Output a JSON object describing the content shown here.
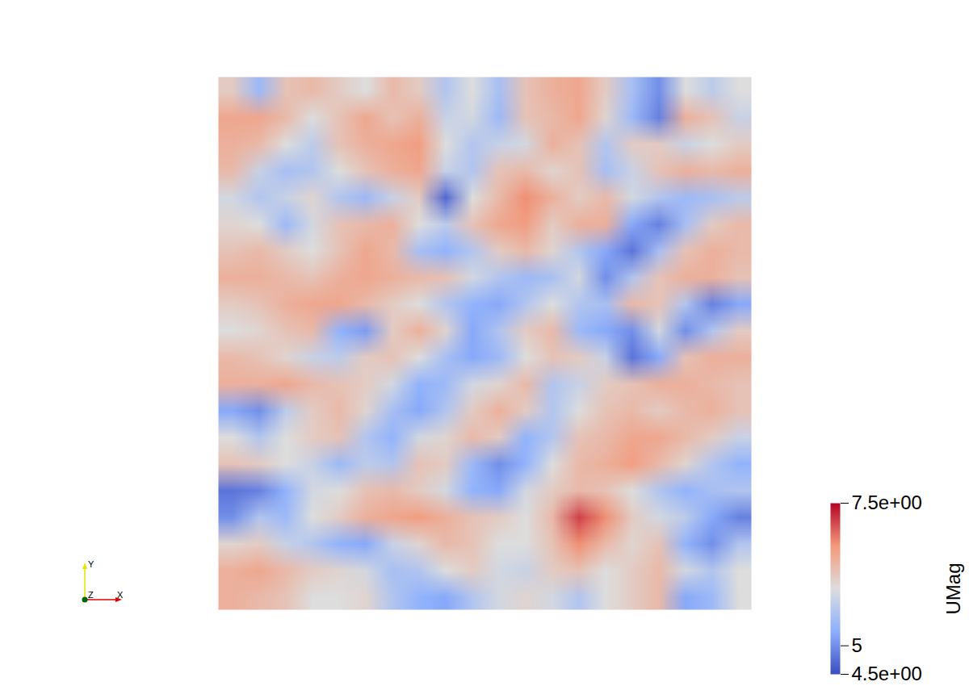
{
  "chart_data": {
    "type": "heatmap",
    "tick_labels": false,
    "colorbar": {
      "label": "UMag",
      "range": [
        4.5,
        7.5
      ],
      "ticks": [
        {
          "value": 7.5,
          "label": "7.5e+00"
        },
        5,
        {
          "value": 4.5,
          "label": "4.5e+00"
        }
      ]
    },
    "axes_triad": {
      "x": "X",
      "y": "Y",
      "z": "Z"
    },
    "cells": [
      [
        6.2,
        5.4,
        6.3,
        6.4,
        6.2,
        6.0,
        6.4,
        6.2,
        5.6,
        6.0,
        5.5,
        6.3,
        6.5,
        6.6,
        6.2,
        5.5,
        5.0,
        6.0,
        5.7,
        6.0
      ],
      [
        6.6,
        6.6,
        6.4,
        6.0,
        6.3,
        6.6,
        6.3,
        6.5,
        5.8,
        5.9,
        5.4,
        6.3,
        6.4,
        6.6,
        6.1,
        5.4,
        4.9,
        6.5,
        6.3,
        5.8
      ],
      [
        6.5,
        6.4,
        6.0,
        5.7,
        6.3,
        6.5,
        6.6,
        6.7,
        6.0,
        5.6,
        5.8,
        5.9,
        6.5,
        6.3,
        5.6,
        6.2,
        6.2,
        5.8,
        6.0,
        6.2
      ],
      [
        6.4,
        5.8,
        5.5,
        5.6,
        6.0,
        6.3,
        6.5,
        6.6,
        5.8,
        5.6,
        6.3,
        6.4,
        6.1,
        6.3,
        5.5,
        5.8,
        6.3,
        6.5,
        6.4,
        6.5
      ],
      [
        5.9,
        5.6,
        5.8,
        6.1,
        5.6,
        5.4,
        5.8,
        6.2,
        4.7,
        6.0,
        6.4,
        6.8,
        6.5,
        6.2,
        6.4,
        5.9,
        5.6,
        5.4,
        5.5,
        5.7
      ],
      [
        6.1,
        6.0,
        5.4,
        5.9,
        6.3,
        6.4,
        6.5,
        6.0,
        5.7,
        6.3,
        6.6,
        6.7,
        6.2,
        6.5,
        6.5,
        5.2,
        4.9,
        5.5,
        6.2,
        6.4
      ],
      [
        6.3,
        6.4,
        6.2,
        6.0,
        6.3,
        6.6,
        6.4,
        5.5,
        5.3,
        5.6,
        6.2,
        6.4,
        6.1,
        5.6,
        5.2,
        4.8,
        5.5,
        6.3,
        6.5,
        6.4
      ],
      [
        6.5,
        6.5,
        6.4,
        6.3,
        6.5,
        6.6,
        6.5,
        6.4,
        6.3,
        5.9,
        5.6,
        5.4,
        5.5,
        5.9,
        5.0,
        5.6,
        6.3,
        6.5,
        6.5,
        6.3
      ],
      [
        6.2,
        6.3,
        6.5,
        6.6,
        6.6,
        6.4,
        6.2,
        6.0,
        5.6,
        5.3,
        5.2,
        5.6,
        6.0,
        5.6,
        5.5,
        6.4,
        6.3,
        5.6,
        4.9,
        5.2
      ],
      [
        6.0,
        6.1,
        6.3,
        6.4,
        5.3,
        5.1,
        6.2,
        6.5,
        6.1,
        5.2,
        5.6,
        6.2,
        6.4,
        5.4,
        5.2,
        5.0,
        5.9,
        5.0,
        5.6,
        6.2
      ],
      [
        6.4,
        6.3,
        6.1,
        5.8,
        5.7,
        6.2,
        6.3,
        6.0,
        5.5,
        5.2,
        5.4,
        6.0,
        6.3,
        6.2,
        5.8,
        4.8,
        5.2,
        6.3,
        6.5,
        6.5
      ],
      [
        6.5,
        6.5,
        6.6,
        6.4,
        6.3,
        6.2,
        5.9,
        5.3,
        5.4,
        5.9,
        6.1,
        6.4,
        5.6,
        5.8,
        6.2,
        6.3,
        6.5,
        6.5,
        6.4,
        6.3
      ],
      [
        5.2,
        5.0,
        5.7,
        6.2,
        6.4,
        6.1,
        5.5,
        5.2,
        5.6,
        6.2,
        6.5,
        6.2,
        5.6,
        6.0,
        6.3,
        6.4,
        6.2,
        6.4,
        6.5,
        6.3
      ],
      [
        6.0,
        5.6,
        6.0,
        6.2,
        6.3,
        5.6,
        5.3,
        5.9,
        6.1,
        6.4,
        6.2,
        5.3,
        5.6,
        6.3,
        6.4,
        6.6,
        6.6,
        6.4,
        6.2,
        5.8
      ],
      [
        6.3,
        6.2,
        6.0,
        5.8,
        5.4,
        5.7,
        5.6,
        6.3,
        6.2,
        5.4,
        5.0,
        5.3,
        6.0,
        6.4,
        6.5,
        6.7,
        6.4,
        6.1,
        5.6,
        5.3
      ],
      [
        4.8,
        4.9,
        5.3,
        5.9,
        6.0,
        6.3,
        6.4,
        6.2,
        5.9,
        5.3,
        5.2,
        5.9,
        6.2,
        6.4,
        6.3,
        6.0,
        5.6,
        5.3,
        5.5,
        5.6
      ],
      [
        5.0,
        5.6,
        5.4,
        6.0,
        6.2,
        6.5,
        6.6,
        6.7,
        6.5,
        6.3,
        6.2,
        6.0,
        6.4,
        7.2,
        6.8,
        6.2,
        5.9,
        5.7,
        5.2,
        4.9
      ],
      [
        6.1,
        6.2,
        5.8,
        5.6,
        5.3,
        5.2,
        5.8,
        6.1,
        6.4,
        6.3,
        6.0,
        6.0,
        6.3,
        6.8,
        6.4,
        6.1,
        6.3,
        5.3,
        5.0,
        5.6
      ],
      [
        6.5,
        6.6,
        6.4,
        6.2,
        6.1,
        5.9,
        5.5,
        5.6,
        6.0,
        6.2,
        5.9,
        5.8,
        6.2,
        6.3,
        6.0,
        6.2,
        6.4,
        5.9,
        5.6,
        6.0
      ],
      [
        6.5,
        6.4,
        6.3,
        6.0,
        6.0,
        6.1,
        5.6,
        5.3,
        5.2,
        5.6,
        5.9,
        6.1,
        5.9,
        5.6,
        6.0,
        6.2,
        6.4,
        5.2,
        5.4,
        6.0
      ]
    ]
  }
}
